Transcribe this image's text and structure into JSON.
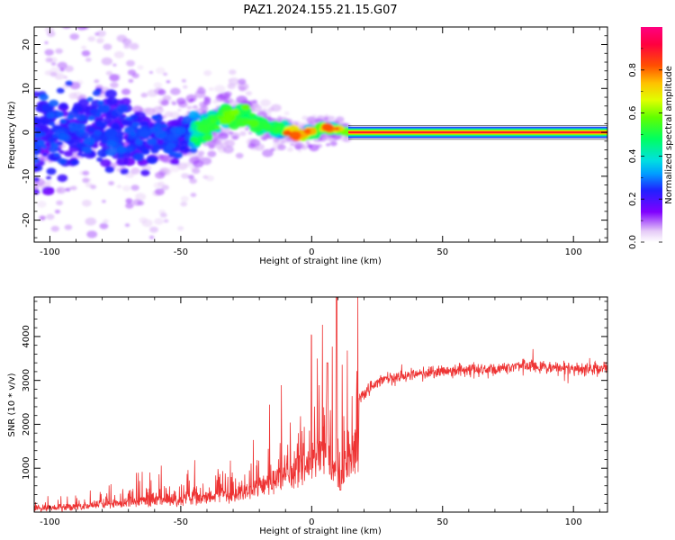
{
  "title": "PAZ1.2024.155.21.15.G07",
  "chart_data": [
    {
      "type": "heatmap",
      "xlabel": "Height of straight line (km)",
      "ylabel": "Frequency (Hz)",
      "xlim": [
        -106,
        113
      ],
      "ylim": [
        -25,
        24
      ],
      "xticks": [
        -100,
        -50,
        0,
        50,
        100
      ],
      "yticks": [
        -20,
        -10,
        0,
        10,
        20
      ],
      "colorbar": {
        "label": "Normalized spectral amplitude",
        "range": [
          0,
          1
        ],
        "ticks": [
          0.0,
          0.2,
          0.4,
          0.6,
          0.8
        ],
        "tick_labels": [
          "0.0",
          "0.2",
          "0.4",
          "0.6",
          "0.8"
        ]
      },
      "ridge": {
        "x": [
          -105,
          -90,
          -75,
          -65,
          -55,
          -45,
          -38,
          -32,
          -28,
          -24,
          -20,
          -15,
          -10,
          -5,
          0,
          5,
          10,
          15,
          25,
          50,
          75,
          100,
          113
        ],
        "y": [
          -1,
          1,
          0,
          -1,
          -1,
          0,
          2,
          4,
          4,
          3,
          2,
          1,
          0.5,
          -0.5,
          0,
          1,
          0.5,
          0,
          0,
          0,
          0,
          0,
          0
        ],
        "spread": [
          12,
          10,
          8,
          6,
          5,
          4,
          3,
          2.5,
          2,
          2,
          1.8,
          1.5,
          1.2,
          1,
          1,
          1,
          0.8,
          0.4,
          0.4,
          0.4,
          0.4,
          0.4,
          0.4
        ]
      },
      "constant_band_from_x": 14
    },
    {
      "type": "line",
      "xlabel": "Height of straight line (km)",
      "ylabel": "SNR (10 * v/v)",
      "xlim": [
        -106,
        113
      ],
      "ylim": [
        0,
        4900
      ],
      "xticks": [
        -100,
        -50,
        0,
        50,
        100
      ],
      "yticks": [
        1000,
        2000,
        3000,
        4000
      ],
      "series": [
        {
          "color": "#ee3333",
          "trend": {
            "x": [
              -106,
              -90,
              -80,
              -70,
              -60,
              -50,
              -40,
              -30,
              -20,
              -10,
              -5,
              0,
              5,
              10,
              15,
              20,
              25,
              30,
              40,
              50,
              60,
              70,
              80,
              90,
              100,
              113
            ],
            "y": [
              150,
              200,
              300,
              400,
              450,
              500,
              600,
              700,
              1000,
              1500,
              1700,
              2000,
              2300,
              1400,
              2300,
              2700,
              2950,
              3050,
              3150,
              3200,
              3250,
              3250,
              3350,
              3300,
              3250,
              3300
            ]
          },
          "spikes": [
            {
              "x": 9.5,
              "y": 4900
            },
            {
              "x": 6,
              "y": 3400
            },
            {
              "x": 11,
              "y": 500
            }
          ]
        }
      ]
    }
  ]
}
